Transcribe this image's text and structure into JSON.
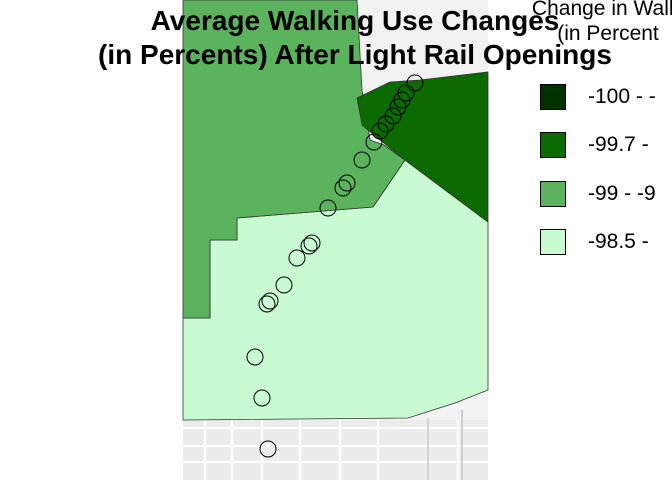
{
  "title_lines": [
    "Average Walking Use Changes",
    "(in Percents) After Light Rail Openings"
  ],
  "legend": {
    "title_lines": [
      "Change in Walki",
      "(in Percent"
    ],
    "items": [
      {
        "label": "-100 - -",
        "color": "#003300"
      },
      {
        "label": "-99.7 -",
        "color": "#0c6b00"
      },
      {
        "label": "-99 - -9",
        "color": "#5bb45d"
      },
      {
        "label": "-98.5 -",
        "color": "#c9fbd2"
      }
    ]
  },
  "map": {
    "basemap_color": "#f2f2f2",
    "station_count": 21
  }
}
